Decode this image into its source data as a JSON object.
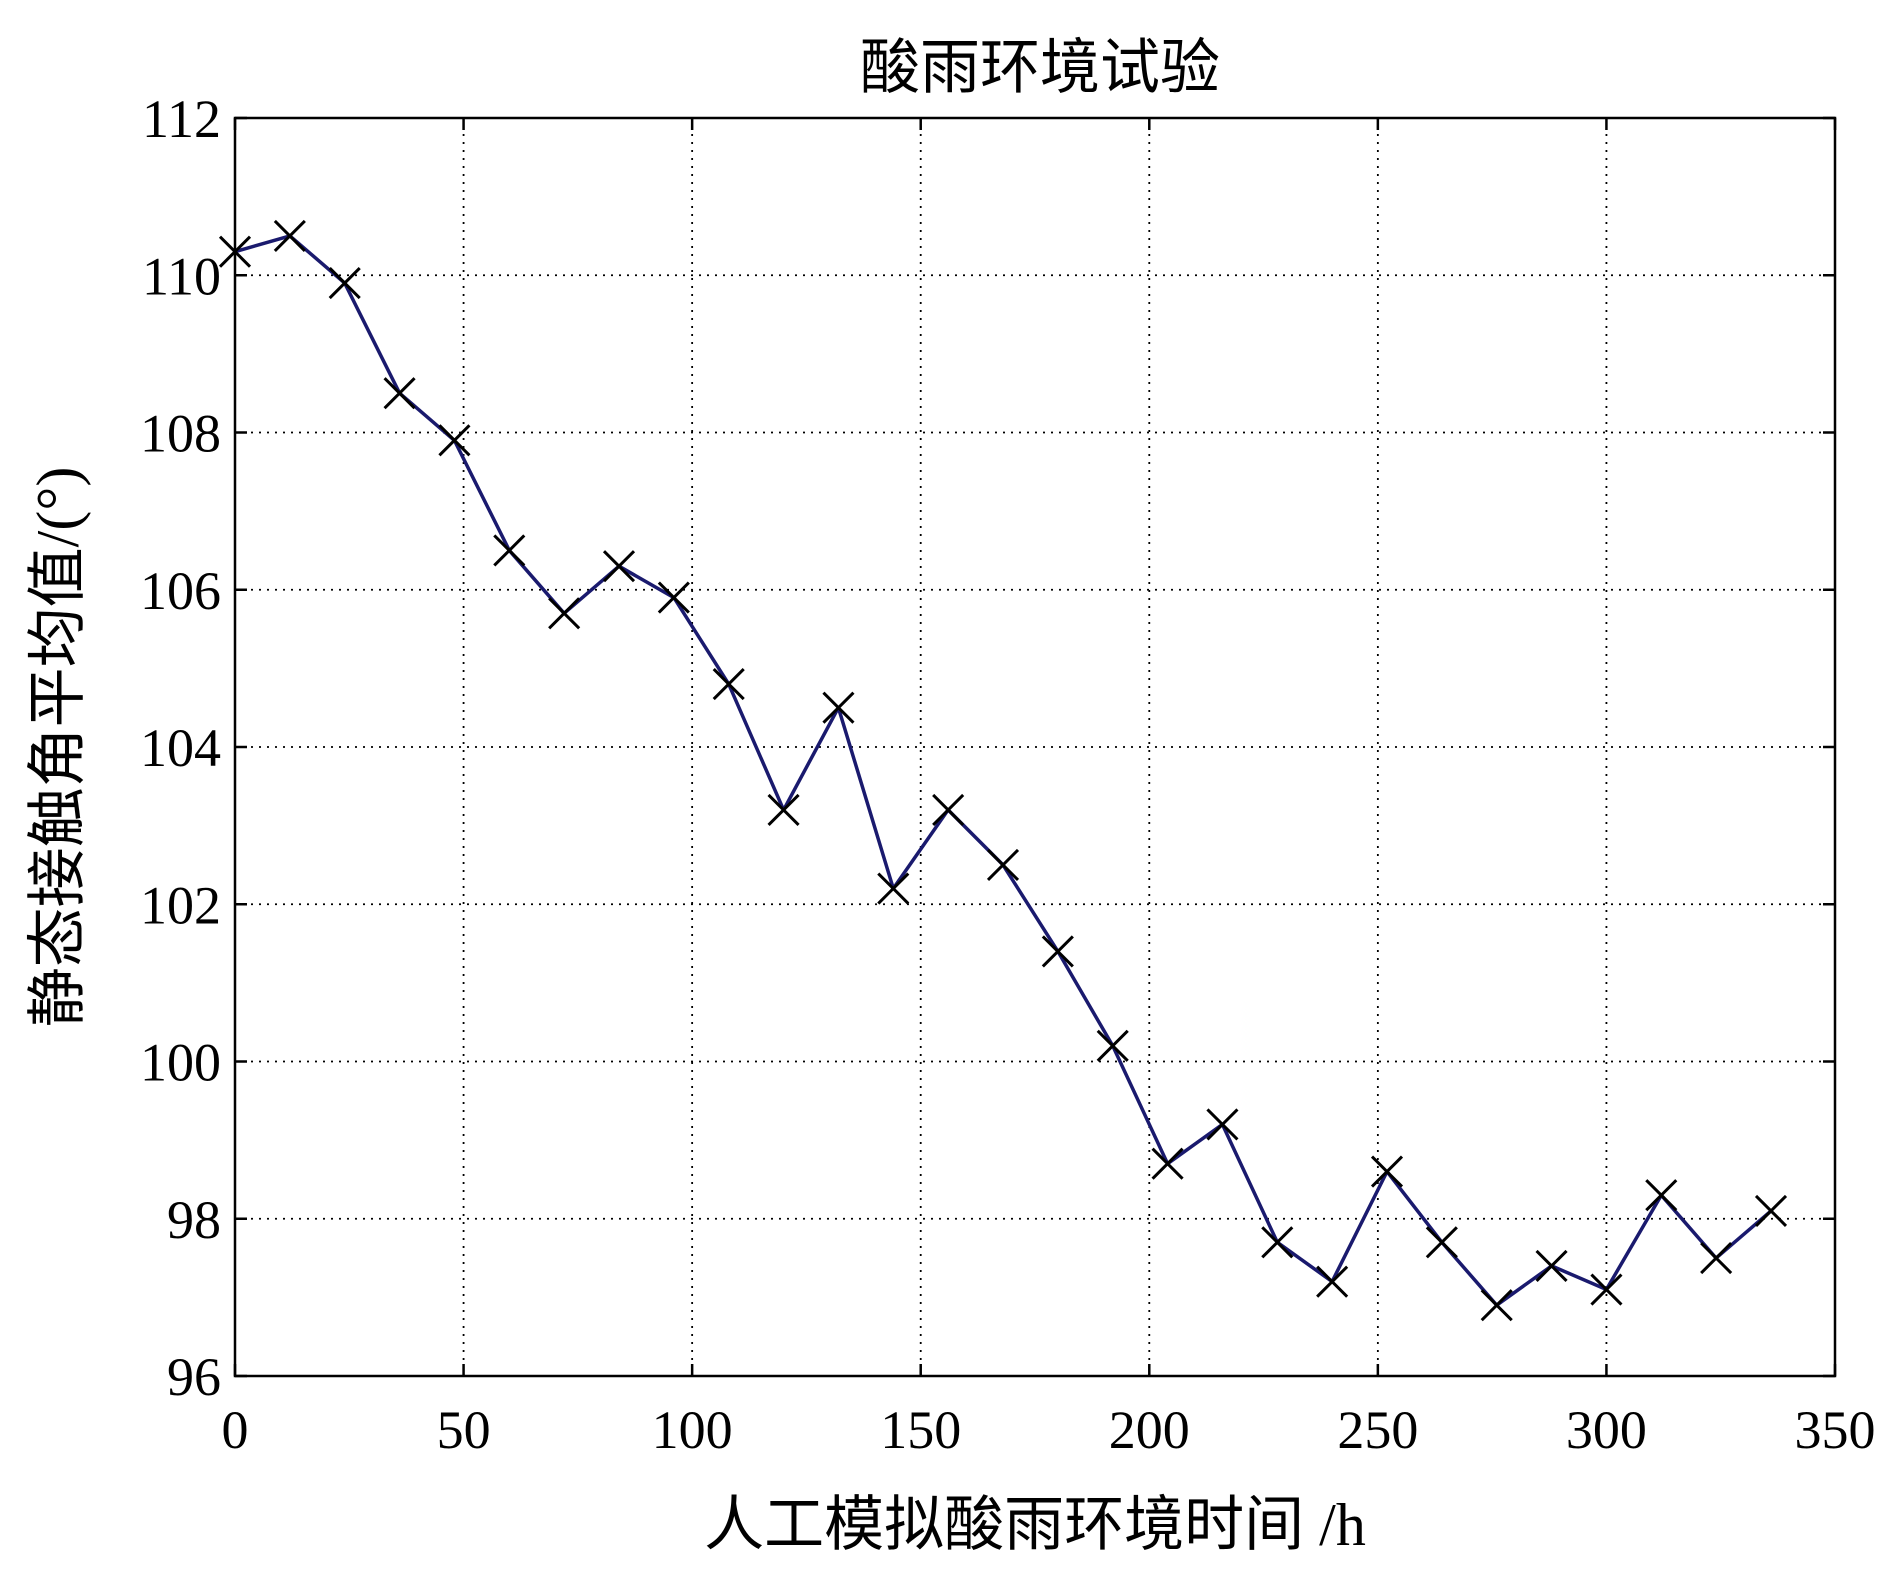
{
  "chart_data": {
    "type": "line",
    "title": "酸雨环境试验",
    "xlabel": "人工模拟酸雨环境时间 /h",
    "ylabel": "静态接触角平均值/(°)",
    "xlim": [
      0,
      350
    ],
    "ylim": [
      96,
      112
    ],
    "xticks": [
      0,
      50,
      100,
      150,
      200,
      250,
      300,
      350
    ],
    "yticks": [
      96,
      98,
      100,
      102,
      104,
      106,
      108,
      110,
      112
    ],
    "xtick_labels": [
      "0",
      "50",
      "100",
      "150",
      "200",
      "250",
      "300",
      "350"
    ],
    "ytick_labels": [
      "96",
      "98",
      "100",
      "102",
      "104",
      "106",
      "108",
      "110",
      "112"
    ],
    "grid": true,
    "marker": "x",
    "line_color": "#1a1a6e",
    "marker_color": "#000000",
    "series": [
      {
        "x": [
          0,
          12,
          24,
          36,
          48,
          60,
          72,
          84,
          96,
          108,
          120,
          132,
          144,
          156,
          168,
          180,
          192,
          204,
          216,
          228,
          240,
          252,
          264,
          276,
          288,
          300,
          312,
          324,
          336
        ],
        "values": [
          110.3,
          110.5,
          109.9,
          108.5,
          107.9,
          106.5,
          105.7,
          106.3,
          105.9,
          104.8,
          103.2,
          104.5,
          102.2,
          103.2,
          102.5,
          101.4,
          100.2,
          98.7,
          99.2,
          97.7,
          97.2,
          98.6,
          97.7,
          96.9,
          97.4,
          97.1,
          98.3,
          97.5,
          98.1
        ]
      }
    ]
  }
}
